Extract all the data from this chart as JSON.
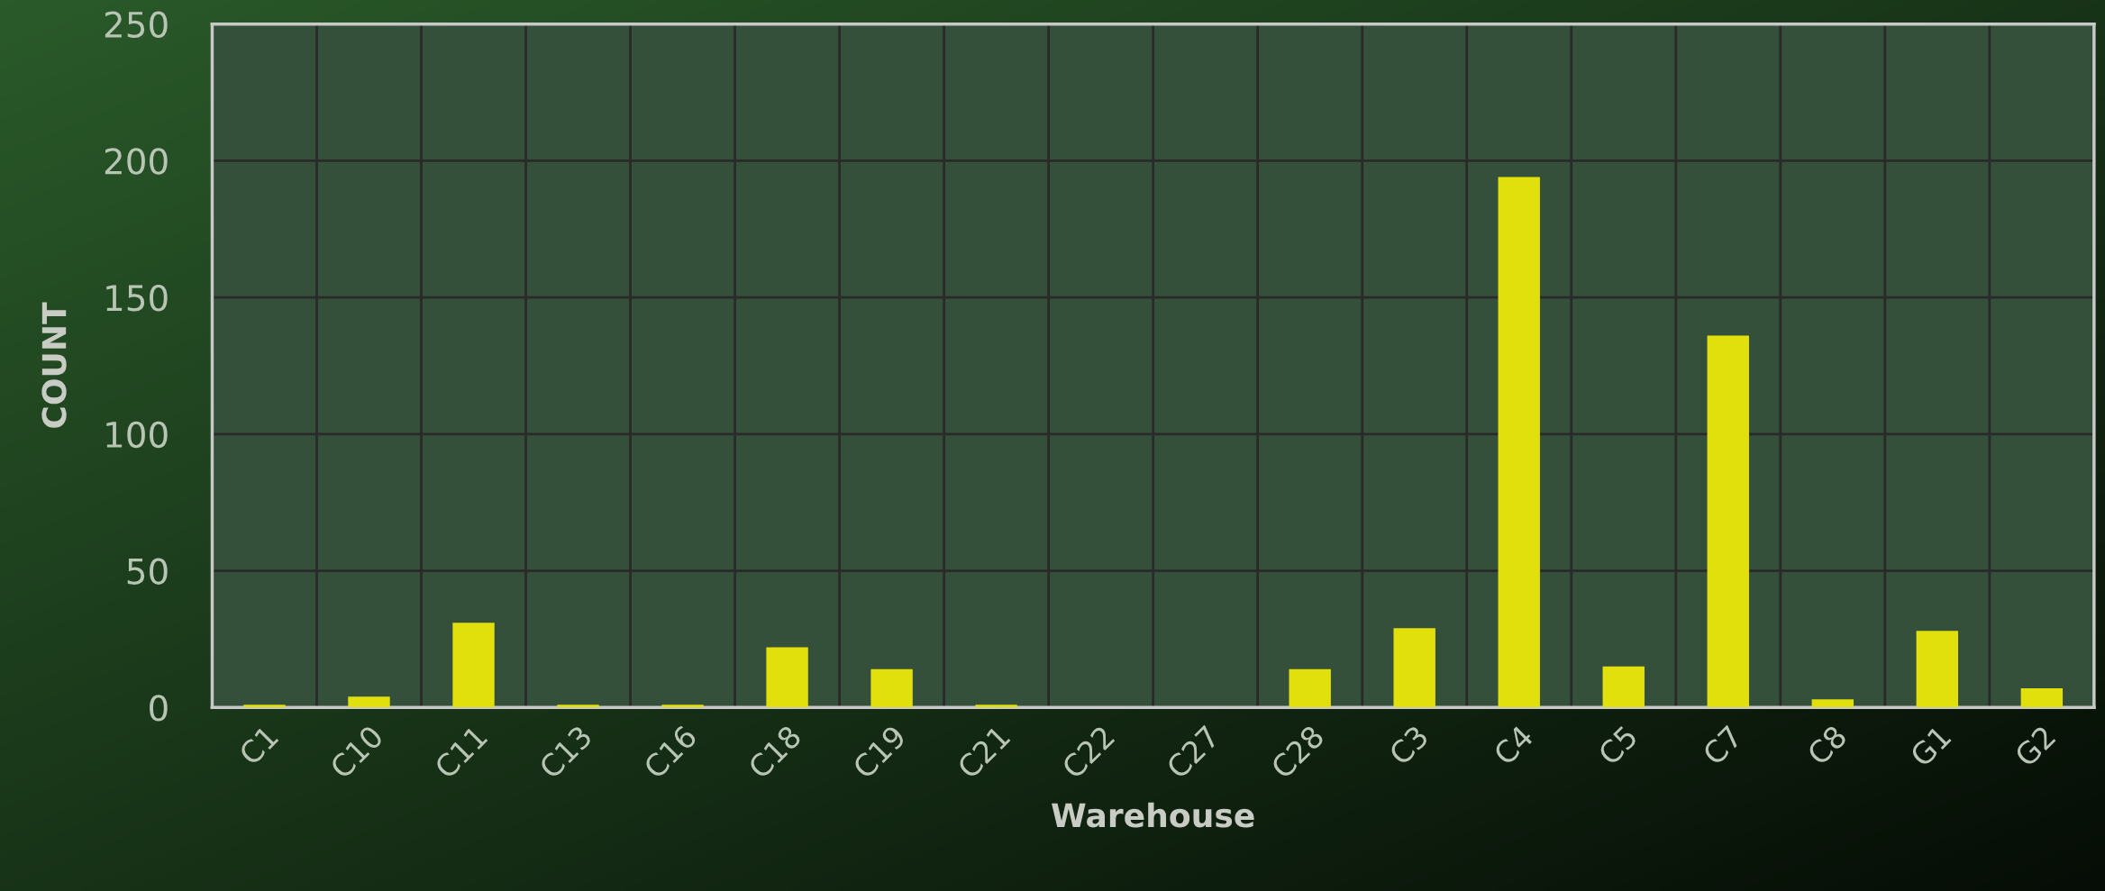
{
  "chart_data": {
    "type": "bar",
    "xlabel": "Warehouse",
    "ylabel": "COUNT",
    "categories": [
      "C1",
      "C10",
      "C11",
      "C13",
      "C16",
      "C18",
      "C19",
      "C21",
      "C22",
      "C27",
      "C28",
      "C3",
      "C4",
      "C5",
      "C7",
      "C8",
      "G1",
      "G2"
    ],
    "values": [
      1,
      4,
      31,
      1,
      1,
      22,
      14,
      1,
      0,
      0,
      14,
      29,
      194,
      15,
      136,
      3,
      28,
      7
    ],
    "color": "#e2e00c",
    "ylim": [
      0,
      250
    ],
    "yticks": [
      0,
      50,
      100,
      150,
      200,
      250
    ],
    "grid": true,
    "legend": false
  }
}
